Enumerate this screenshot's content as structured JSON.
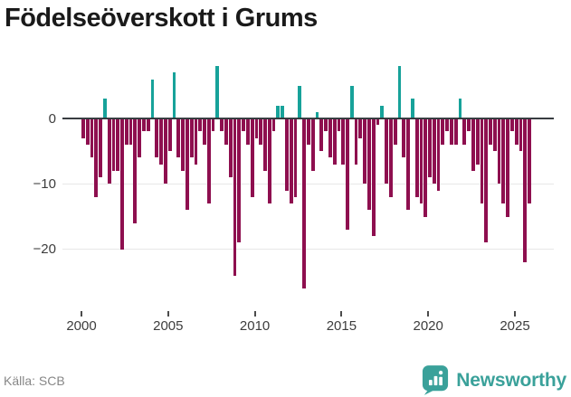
{
  "title": "Födelseöverskott i Grums",
  "source": "Källa: SCB",
  "logo": {
    "text": "Newsworthy"
  },
  "colors": {
    "positive_bar": "#17a29a",
    "negative_bar": "#8e0f4f",
    "zero_line": "#383d41",
    "gridline": "#e7e7e7",
    "title_text": "#1a1a1a",
    "axis_text": "#3d3d3d",
    "source_text": "#878787",
    "logo_teal": "#3aa19a"
  },
  "y_axis": {
    "ticks": [
      {
        "label": "0",
        "value": 0
      },
      {
        "label": "−10",
        "value": -10
      },
      {
        "label": "−20",
        "value": -20
      }
    ]
  },
  "x_axis": {
    "tick_years": [
      "2000",
      "2005",
      "2010",
      "2015",
      "2020",
      "2025"
    ]
  },
  "chart_data": {
    "type": "bar",
    "title": "Födelseöverskott i Grums",
    "frequency": "quarterly",
    "legend": "off",
    "grid": "horizontal",
    "ylim": [
      -27,
      9
    ],
    "x_range_years": [
      2000,
      2026
    ],
    "x": [
      "2000Q1",
      "2000Q2",
      "2000Q3",
      "2000Q4",
      "2001Q1",
      "2001Q2",
      "2001Q3",
      "2001Q4",
      "2002Q1",
      "2002Q2",
      "2002Q3",
      "2002Q4",
      "2003Q1",
      "2003Q2",
      "2003Q3",
      "2003Q4",
      "2004Q1",
      "2004Q2",
      "2004Q3",
      "2004Q4",
      "2005Q1",
      "2005Q2",
      "2005Q3",
      "2005Q4",
      "2006Q1",
      "2006Q2",
      "2006Q3",
      "2006Q4",
      "2007Q1",
      "2007Q2",
      "2007Q3",
      "2007Q4",
      "2008Q1",
      "2008Q2",
      "2008Q3",
      "2008Q4",
      "2009Q1",
      "2009Q2",
      "2009Q3",
      "2009Q4",
      "2010Q1",
      "2010Q2",
      "2010Q3",
      "2010Q4",
      "2011Q1",
      "2011Q2",
      "2011Q3",
      "2011Q4",
      "2012Q1",
      "2012Q2",
      "2012Q3",
      "2012Q4",
      "2013Q1",
      "2013Q2",
      "2013Q3",
      "2013Q4",
      "2014Q1",
      "2014Q2",
      "2014Q3",
      "2014Q4",
      "2015Q1",
      "2015Q2",
      "2015Q3",
      "2015Q4",
      "2016Q1",
      "2016Q2",
      "2016Q3",
      "2016Q4",
      "2017Q1",
      "2017Q2",
      "2017Q3",
      "2017Q4",
      "2018Q1",
      "2018Q2",
      "2018Q3",
      "2018Q4",
      "2019Q1",
      "2019Q2",
      "2019Q3",
      "2019Q4",
      "2020Q1",
      "2020Q2",
      "2020Q3",
      "2020Q4",
      "2021Q1",
      "2021Q2",
      "2021Q3",
      "2021Q4",
      "2022Q1",
      "2022Q2",
      "2022Q3",
      "2022Q4",
      "2023Q1",
      "2023Q2",
      "2023Q3",
      "2023Q4",
      "2024Q1",
      "2024Q2",
      "2024Q3",
      "2024Q4",
      "2025Q1",
      "2025Q2",
      "2025Q3",
      "2025Q4"
    ],
    "values": [
      -3,
      -4,
      -6,
      -12,
      -9,
      3,
      -10,
      -8,
      -8,
      -20,
      -4,
      -4,
      -16,
      -6,
      -2,
      -2,
      6,
      -6,
      -7,
      -10,
      -5,
      7,
      -6,
      -8,
      -14,
      -6,
      -7,
      -2,
      -4,
      -13,
      -2,
      8,
      -2,
      -4,
      -9,
      -24,
      -19,
      -2,
      -4,
      -12,
      -3,
      -4,
      -8,
      -13,
      -2,
      2,
      2,
      -11,
      -13,
      -12,
      5,
      -26,
      -4,
      -8,
      1,
      -5,
      -2,
      -6,
      -7,
      -2,
      -7,
      -17,
      5,
      -7,
      -3,
      -10,
      -14,
      -18,
      -1,
      2,
      -10,
      -12,
      -4,
      8,
      -6,
      -14,
      3,
      -12,
      -13,
      -15,
      -9,
      -10,
      -11,
      -4,
      -2,
      -4,
      -4,
      3,
      -4,
      -2,
      -8,
      -7,
      -13,
      -19,
      -4,
      -5,
      -10,
      -13,
      -15,
      -2,
      -4,
      -5,
      -22,
      -13
    ]
  }
}
